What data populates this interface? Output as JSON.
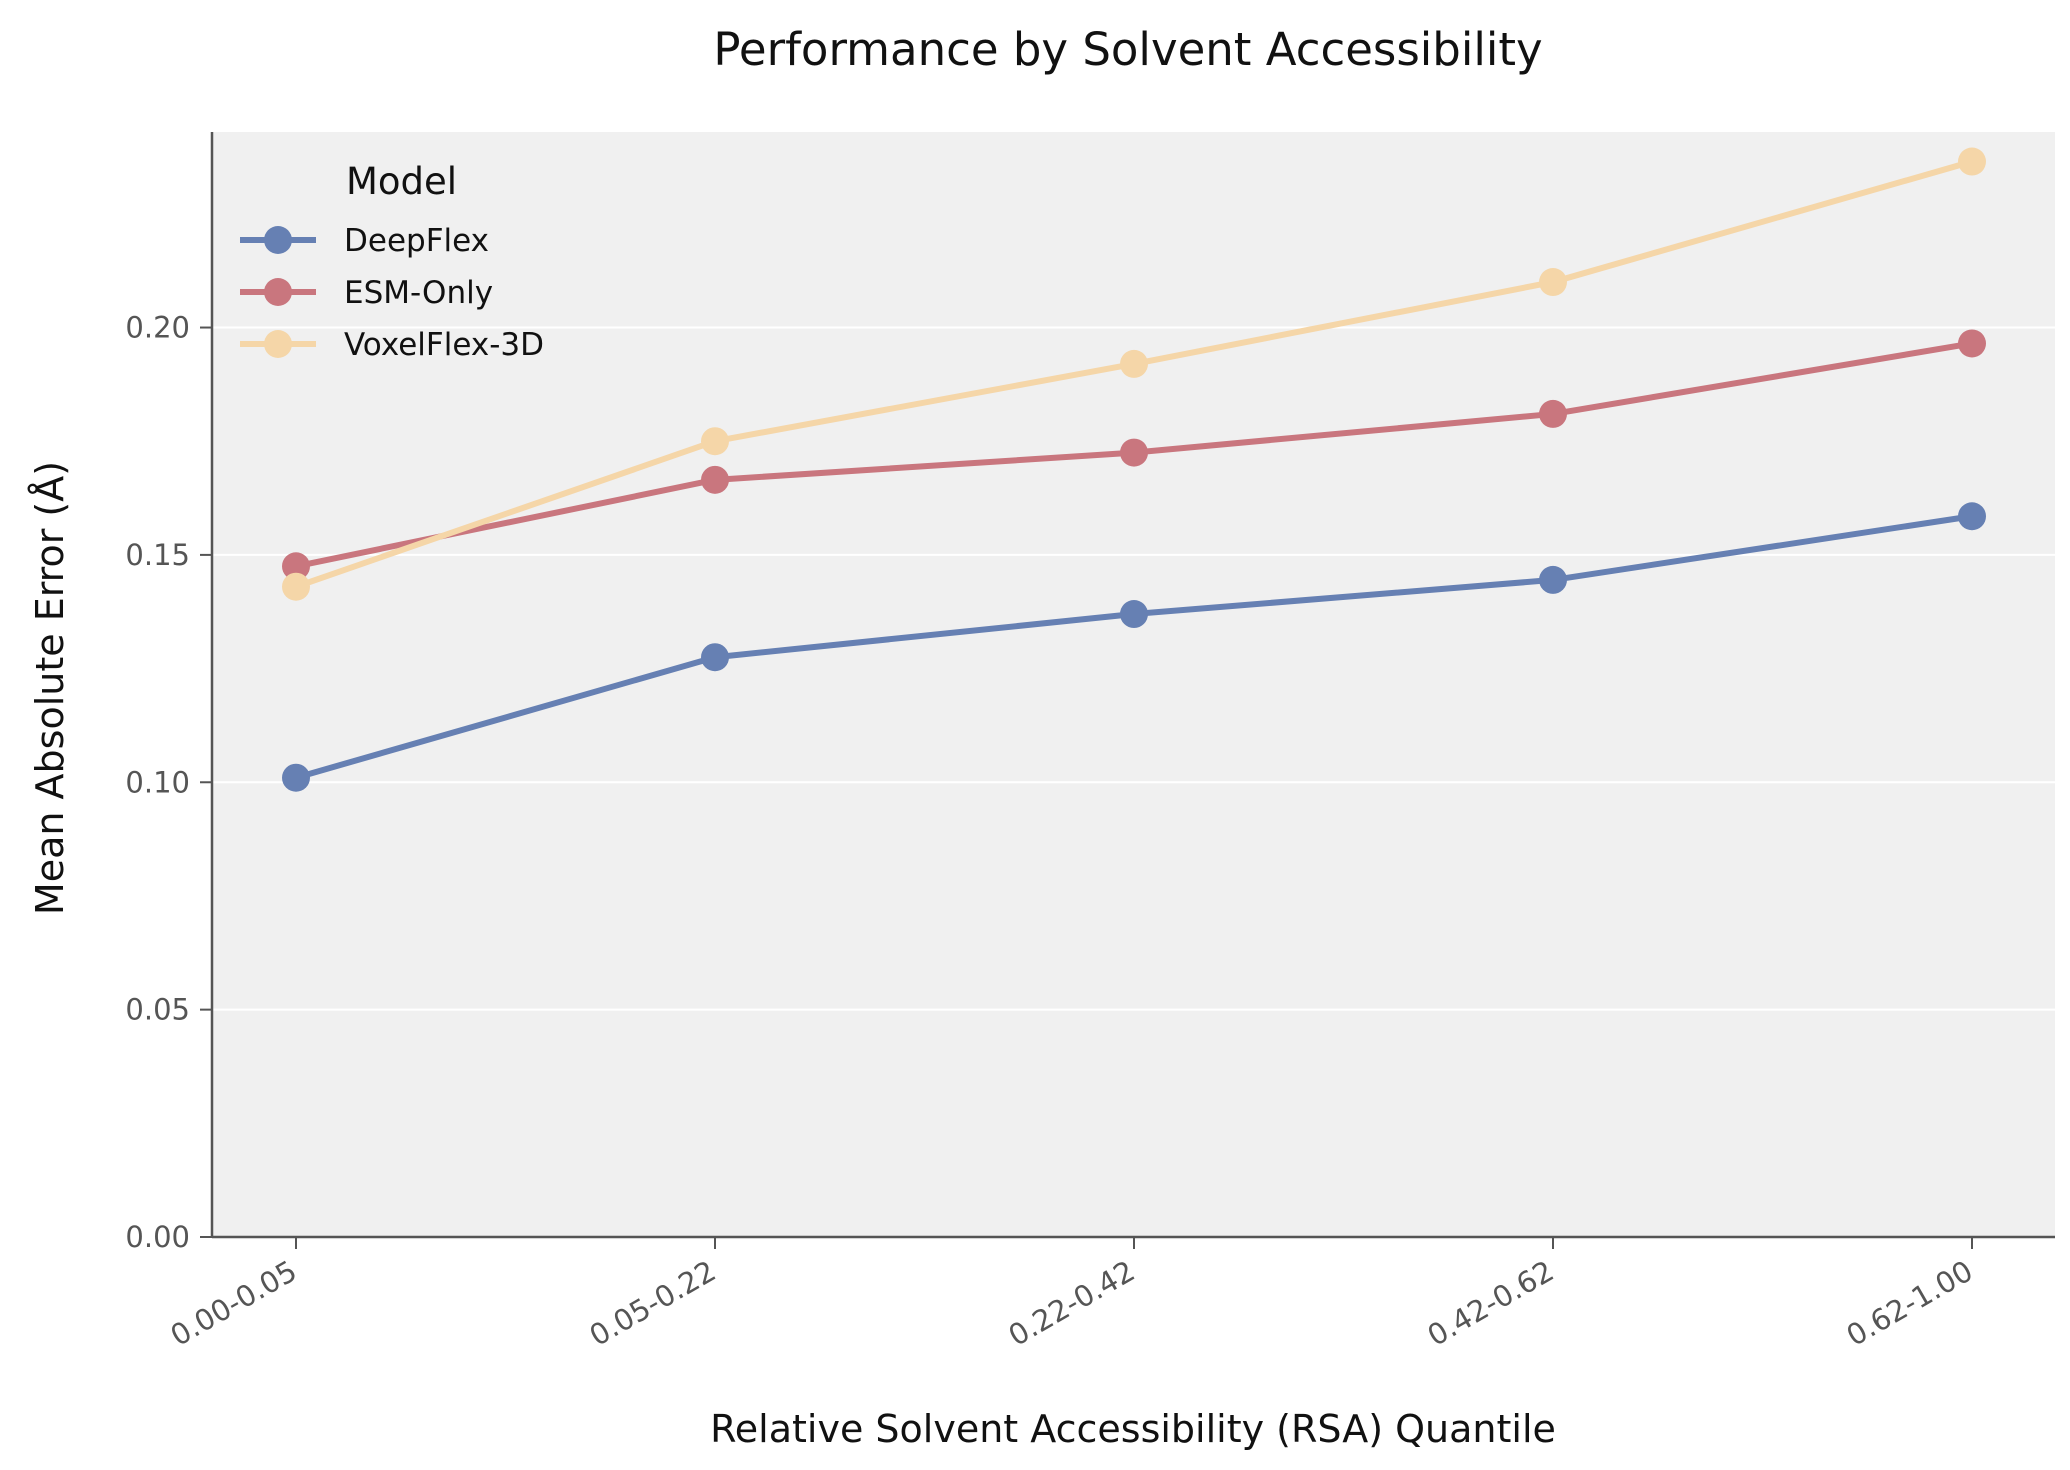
{
  "chart_data": {
    "type": "line",
    "title": "Performance by Solvent Accessibility",
    "xlabel": "Relative Solvent Accessibility (RSA) Quantile",
    "ylabel": "Mean Absolute Error (Å)",
    "categories": [
      "0.00-0.05",
      "0.05-0.22",
      "0.22-0.42",
      "0.42-0.62",
      "0.62-1.00"
    ],
    "ylim": [
      0,
      0.243
    ],
    "yticks": [
      "0.00",
      "0.05",
      "0.10",
      "0.15",
      "0.20"
    ],
    "grid": "horizontal",
    "legend": {
      "title": "Model",
      "position": "top-left"
    },
    "series": [
      {
        "name": "DeepFlex",
        "color": "#6680b3",
        "values": [
          0.101,
          0.1275,
          0.137,
          0.1445,
          0.1585
        ]
      },
      {
        "name": "ESM-Only",
        "color": "#c9767e",
        "values": [
          0.1475,
          0.1665,
          0.1725,
          0.181,
          0.1965
        ]
      },
      {
        "name": "VoxelFlex-3D",
        "color": "#f5d6a8",
        "values": [
          0.143,
          0.175,
          0.192,
          0.21,
          0.2365
        ]
      }
    ],
    "colors": {
      "plot_background": "#f0f0f0",
      "grid": "#ffffff",
      "axis": "#555555"
    }
  }
}
